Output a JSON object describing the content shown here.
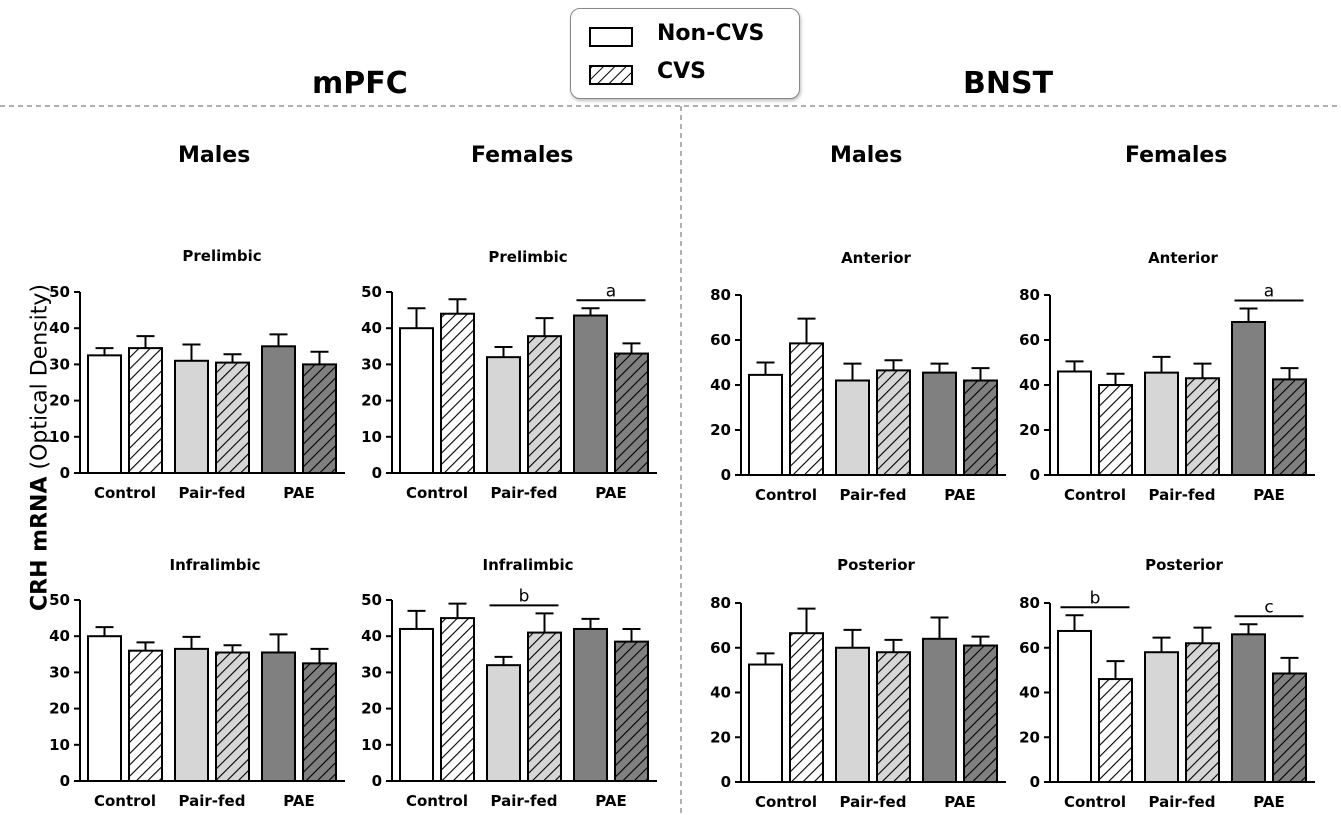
{
  "colors": {
    "control": "#ffffff",
    "pair_fed": "#d6d6d6",
    "pae": "#808080",
    "stroke": "#000000",
    "divider": "#b0b0b0"
  },
  "legend": {
    "non_cvs": "Non-CVS",
    "cvs": "CVS"
  },
  "regions": {
    "left": "mPFC",
    "right": "BNST"
  },
  "sexes": {
    "m1": "Males",
    "f1": "Females",
    "m2": "Males",
    "f2": "Females"
  },
  "y_axis_label": {
    "bold": "CRH mRNA",
    "normal": " (Optical Density)"
  },
  "chart_data": [
    {
      "id": "mpfc-m-pre",
      "type": "bar",
      "title": "Prelimbic",
      "categories": [
        "Control",
        "Pair-fed",
        "PAE"
      ],
      "series": [
        {
          "name": "Non-CVS",
          "values": [
            32.5,
            31.0,
            35.0
          ],
          "errors": [
            2.0,
            4.5,
            3.3
          ]
        },
        {
          "name": "CVS",
          "values": [
            34.5,
            30.5,
            30.0
          ],
          "errors": [
            3.3,
            2.3,
            3.5
          ]
        }
      ],
      "ylim": [
        0,
        50
      ],
      "yticks": [
        0,
        10,
        20,
        30,
        40,
        50
      ],
      "annotations": []
    },
    {
      "id": "mpfc-f-pre",
      "type": "bar",
      "title": "Prelimbic",
      "categories": [
        "Control",
        "Pair-fed",
        "PAE"
      ],
      "series": [
        {
          "name": "Non-CVS",
          "values": [
            40.0,
            32.0,
            43.5
          ],
          "errors": [
            5.5,
            2.8,
            2.0
          ]
        },
        {
          "name": "CVS",
          "values": [
            44.0,
            37.8,
            33.0
          ],
          "errors": [
            4.0,
            5.0,
            2.8
          ]
        }
      ],
      "ylim": [
        0,
        50
      ],
      "yticks": [
        0,
        10,
        20,
        30,
        40,
        50
      ],
      "annotations": [
        {
          "text": "a",
          "from": [
            2,
            0
          ],
          "to": [
            2,
            1
          ]
        }
      ]
    },
    {
      "id": "bnst-m-ant",
      "type": "bar",
      "title": "Anterior",
      "categories": [
        "Control",
        "Pair-fed",
        "PAE"
      ],
      "series": [
        {
          "name": "Non-CVS",
          "values": [
            44.5,
            42.0,
            45.5
          ],
          "errors": [
            5.5,
            7.5,
            4.0
          ]
        },
        {
          "name": "CVS",
          "values": [
            58.5,
            46.5,
            42.0
          ],
          "errors": [
            11.0,
            4.5,
            5.5
          ]
        }
      ],
      "ylim": [
        0,
        80
      ],
      "yticks": [
        0,
        20,
        40,
        60,
        80
      ],
      "annotations": []
    },
    {
      "id": "bnst-f-ant",
      "type": "bar",
      "title": "Anterior",
      "categories": [
        "Control",
        "Pair-fed",
        "PAE"
      ],
      "series": [
        {
          "name": "Non-CVS",
          "values": [
            46.0,
            45.5,
            68.0
          ],
          "errors": [
            4.5,
            7.0,
            6.0
          ]
        },
        {
          "name": "CVS",
          "values": [
            40.0,
            43.0,
            42.5
          ],
          "errors": [
            5.0,
            6.5,
            5.0
          ]
        }
      ],
      "ylim": [
        0,
        80
      ],
      "yticks": [
        0,
        20,
        40,
        60,
        80
      ],
      "annotations": [
        {
          "text": "a",
          "from": [
            2,
            0
          ],
          "to": [
            2,
            1
          ]
        }
      ]
    },
    {
      "id": "mpfc-m-inf",
      "type": "bar",
      "title": "Infralimbic",
      "categories": [
        "Control",
        "Pair-fed",
        "PAE"
      ],
      "series": [
        {
          "name": "Non-CVS",
          "values": [
            40.0,
            36.5,
            35.5
          ],
          "errors": [
            2.5,
            3.3,
            5.0
          ]
        },
        {
          "name": "CVS",
          "values": [
            36.0,
            35.5,
            32.5
          ],
          "errors": [
            2.3,
            2.0,
            4.0
          ]
        }
      ],
      "ylim": [
        0,
        50
      ],
      "yticks": [
        0,
        10,
        20,
        30,
        40,
        50
      ],
      "annotations": []
    },
    {
      "id": "mpfc-f-inf",
      "type": "bar",
      "title": "Infralimbic",
      "categories": [
        "Control",
        "Pair-fed",
        "PAE"
      ],
      "series": [
        {
          "name": "Non-CVS",
          "values": [
            42.0,
            32.0,
            42.0
          ],
          "errors": [
            5.0,
            2.3,
            2.8
          ]
        },
        {
          "name": "CVS",
          "values": [
            45.0,
            41.0,
            38.5
          ],
          "errors": [
            4.0,
            5.3,
            3.5
          ]
        }
      ],
      "ylim": [
        0,
        50
      ],
      "yticks": [
        0,
        10,
        20,
        30,
        40,
        50
      ],
      "annotations": [
        {
          "text": "b",
          "from": [
            1,
            0
          ],
          "to": [
            1,
            1
          ]
        }
      ]
    },
    {
      "id": "bnst-m-post",
      "type": "bar",
      "title": "Posterior",
      "categories": [
        "Control",
        "Pair-fed",
        "PAE"
      ],
      "series": [
        {
          "name": "Non-CVS",
          "values": [
            52.5,
            60.0,
            64.0
          ],
          "errors": [
            5.0,
            8.0,
            9.5
          ]
        },
        {
          "name": "CVS",
          "values": [
            66.5,
            58.0,
            61.0
          ],
          "errors": [
            11.0,
            5.5,
            4.0
          ]
        }
      ],
      "ylim": [
        0,
        80
      ],
      "yticks": [
        0,
        20,
        40,
        60,
        80
      ],
      "annotations": []
    },
    {
      "id": "bnst-f-post",
      "type": "bar",
      "title": "Posterior",
      "categories": [
        "Control",
        "Pair-fed",
        "PAE"
      ],
      "series": [
        {
          "name": "Non-CVS",
          "values": [
            67.5,
            58.0,
            66.0
          ],
          "errors": [
            7.0,
            6.5,
            4.5
          ]
        },
        {
          "name": "CVS",
          "values": [
            46.0,
            62.0,
            48.5
          ],
          "errors": [
            8.0,
            7.0,
            7.0
          ]
        }
      ],
      "ylim": [
        0,
        80
      ],
      "yticks": [
        0,
        20,
        40,
        60,
        80
      ],
      "annotations": [
        {
          "text": "b",
          "from": [
            0,
            0
          ],
          "to": [
            0,
            1
          ]
        },
        {
          "text": "c",
          "from": [
            2,
            0
          ],
          "to": [
            2,
            1
          ]
        }
      ]
    }
  ]
}
